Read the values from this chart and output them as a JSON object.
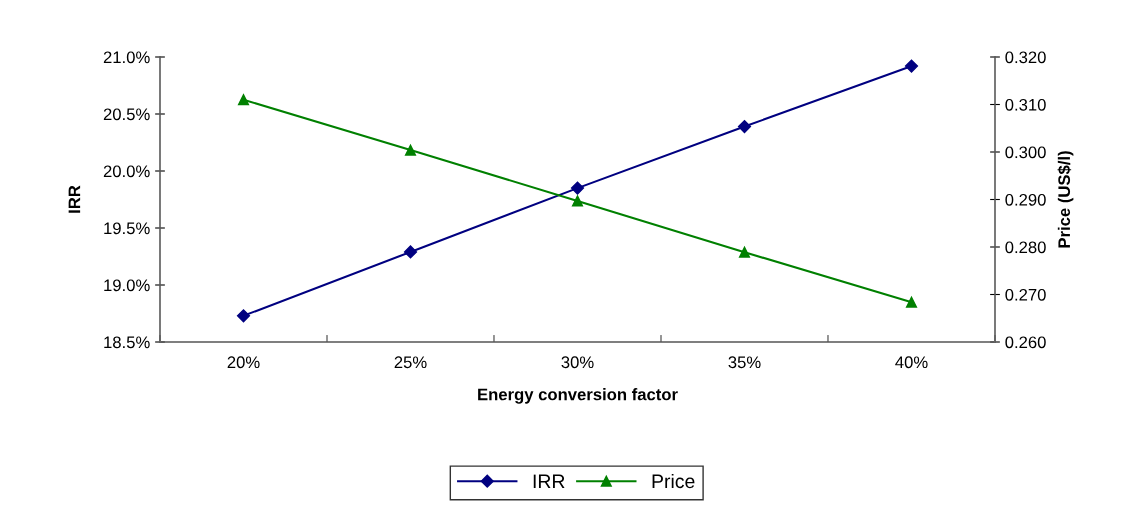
{
  "chart_data": {
    "type": "line",
    "xlabel": "Energy conversion factor",
    "ylabel": "IRR",
    "y2label": "Price (US$/l)",
    "categories": [
      "20%",
      "25%",
      "30%",
      "35%",
      "40%"
    ],
    "series": [
      {
        "name": "IRR",
        "color": "#000080",
        "marker": "diamond",
        "values": [
          18.73,
          19.29,
          19.85,
          20.39,
          20.92
        ]
      },
      {
        "name": "Price",
        "color": "#008000",
        "marker": "triangle",
        "axis": "y2",
        "values": [
          0.311,
          0.3004,
          0.2897,
          0.2789,
          0.2684
        ]
      }
    ],
    "ylim": [
      18.5,
      21.0
    ],
    "yticks": [
      {
        "value": 18.5,
        "label": "18.5%"
      },
      {
        "value": 19.0,
        "label": "19.0%"
      },
      {
        "value": 19.5,
        "label": "19.5%"
      },
      {
        "value": 20.0,
        "label": "20.0%"
      },
      {
        "value": 20.5,
        "label": "20.5%"
      },
      {
        "value": 21.0,
        "label": "21.0%"
      }
    ],
    "y2lim": [
      0.26,
      0.32
    ],
    "y2ticks": [
      {
        "value": 0.26,
        "label": "0.260"
      },
      {
        "value": 0.27,
        "label": "0.270"
      },
      {
        "value": 0.28,
        "label": "0.280"
      },
      {
        "value": 0.29,
        "label": "0.290"
      },
      {
        "value": 0.3,
        "label": "0.300"
      },
      {
        "value": 0.31,
        "label": "0.310"
      },
      {
        "value": 0.32,
        "label": "0.320"
      }
    ],
    "grid": false,
    "legend": "bottom",
    "line_style": "solid"
  }
}
